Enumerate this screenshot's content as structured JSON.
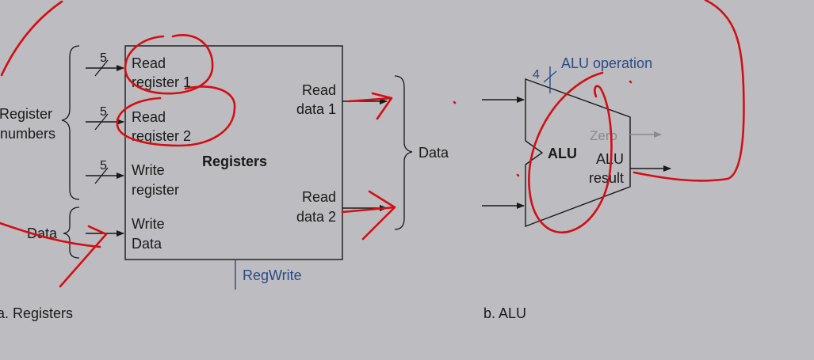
{
  "colors": {
    "background": "#bdbcc0",
    "ink": "#1a1a1a",
    "blue_label": "#2c4a86",
    "dim": "#8a8a8e",
    "annotation_red": "#d10f14"
  },
  "registers": {
    "group_label_line1": "Register",
    "group_label_line2": "numbers",
    "data_group_label": "Data",
    "read_register_1": [
      "Read",
      "register 1"
    ],
    "read_register_2": [
      "Read",
      "register 2"
    ],
    "write_register": [
      "Write",
      "register"
    ],
    "write_data": [
      "Write",
      "Data"
    ],
    "block_title": "Registers",
    "read_data_1": [
      "Read",
      "data 1"
    ],
    "read_data_2": [
      "Read",
      "data 2"
    ],
    "output_group_label": "Data",
    "bus_width_1": "5",
    "bus_width_2": "5",
    "bus_width_3": "5",
    "control_label": "RegWrite",
    "caption": "a. Registers"
  },
  "alu": {
    "op_width": "4",
    "op_label": "ALU operation",
    "zero_label": "Zero",
    "block_label": "ALU",
    "result_line1": "ALU",
    "result_line2": "result",
    "caption": "b. ALU"
  }
}
